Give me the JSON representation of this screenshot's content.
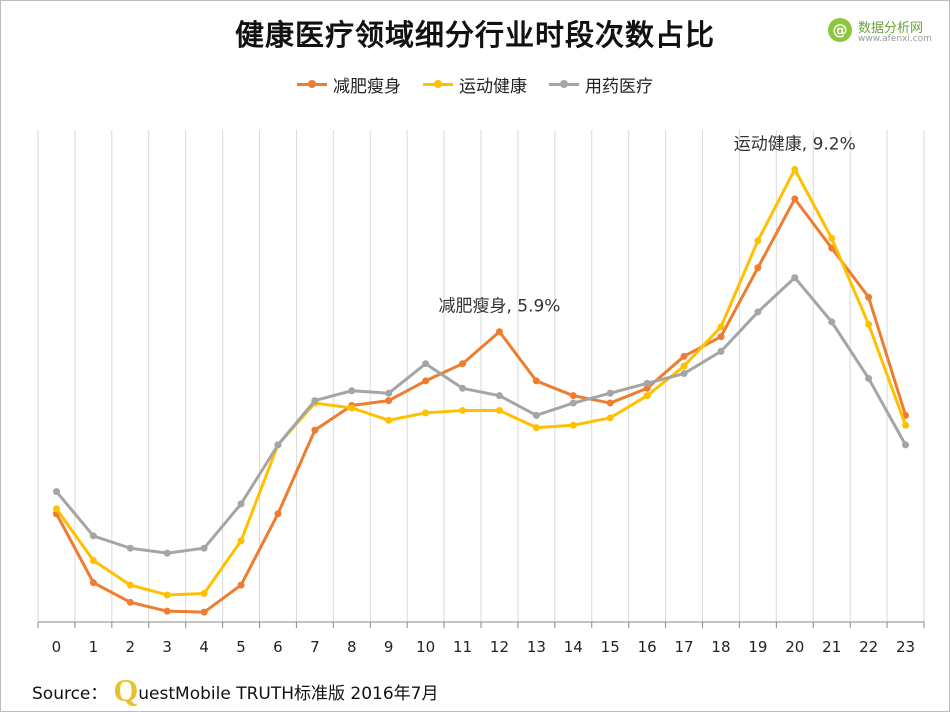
{
  "title": "健康医疗领域细分行业时段次数占比",
  "logo": {
    "mark": "@",
    "main": "数据分析网",
    "sub": "www.afenxi.com"
  },
  "source": {
    "label": "Source：",
    "q": "Q",
    "rest": "uestMobile TRUTH标准版 2016年7月"
  },
  "chart_data": {
    "type": "line",
    "title": "健康医疗领域细分行业时段次数占比",
    "xlabel": "",
    "ylabel": "",
    "x": [
      "0",
      "1",
      "2",
      "3",
      "4",
      "5",
      "6",
      "7",
      "8",
      "9",
      "10",
      "11",
      "12",
      "13",
      "14",
      "15",
      "16",
      "17",
      "18",
      "19",
      "20",
      "21",
      "22",
      "23"
    ],
    "ylim": [
      0,
      10
    ],
    "grid": "vertical",
    "legend": "top-center",
    "series": [
      {
        "name": "减肥瘦身",
        "color": "#ed7d31",
        "values": [
          2.2,
          0.8,
          0.4,
          0.22,
          0.2,
          0.75,
          2.2,
          3.9,
          4.4,
          4.5,
          4.9,
          5.25,
          5.9,
          4.9,
          4.6,
          4.45,
          4.75,
          5.4,
          5.8,
          7.2,
          8.6,
          7.6,
          6.6,
          4.2
        ]
      },
      {
        "name": "运动健康",
        "color": "#ffc000",
        "values": [
          2.3,
          1.25,
          0.75,
          0.55,
          0.58,
          1.65,
          3.6,
          4.45,
          4.35,
          4.1,
          4.25,
          4.3,
          4.3,
          3.95,
          4.0,
          4.15,
          4.6,
          5.2,
          6.0,
          7.75,
          9.2,
          7.8,
          6.05,
          4.0
        ]
      },
      {
        "name": "用药医疗",
        "color": "#a5a5a5",
        "values": [
          2.65,
          1.75,
          1.5,
          1.4,
          1.5,
          2.4,
          3.6,
          4.5,
          4.7,
          4.65,
          5.25,
          4.75,
          4.6,
          4.2,
          4.45,
          4.65,
          4.85,
          5.05,
          5.5,
          6.3,
          7.0,
          6.1,
          4.95,
          3.6
        ]
      }
    ],
    "annotations": [
      {
        "series": "减肥瘦身",
        "x": "12",
        "text": "减肥瘦身, 5.9%"
      },
      {
        "series": "运动健康",
        "x": "20",
        "text": "运动健康, 9.2%"
      }
    ]
  }
}
